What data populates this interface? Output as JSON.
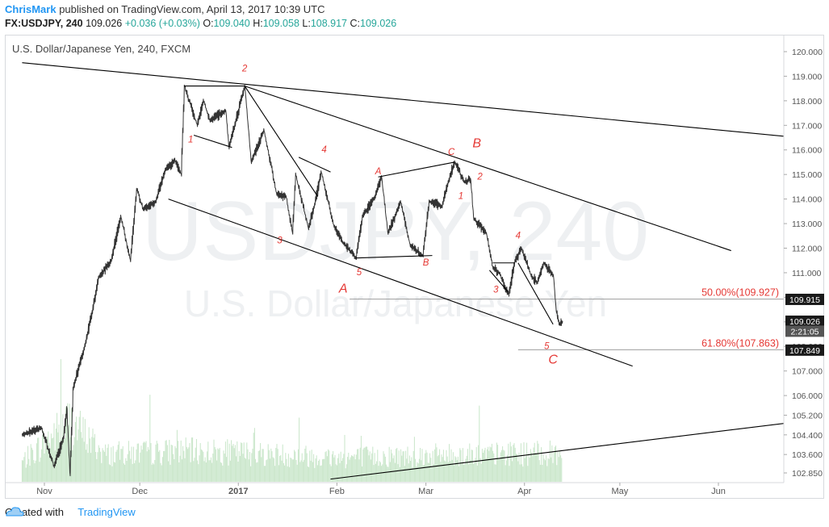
{
  "header": {
    "author": "ChrisMark",
    "published": "published on TradingView.com, April 13, 2017 10:39 UTC",
    "symbol": "FX:USDJPY, 240",
    "last": "109.026",
    "change": "+0.036 (+0.03%)",
    "open_label": "O:",
    "open": "109.040",
    "high_label": "H:",
    "high": "109.058",
    "low_label": "L:",
    "low": "108.917",
    "close_label": "C:",
    "close": "109.026"
  },
  "footer": {
    "created_with": "Created with",
    "brand": "TradingView"
  },
  "colors": {
    "wave_label": "#e53935",
    "trend_line": "#000000",
    "price_line": "#333333",
    "volume": "#c8e6c9",
    "fib_line": "#9e9e9e",
    "fib_label": "#e53935",
    "author": "#2196f3",
    "price_up": "#26a69a",
    "tag_dark": "#1a1a1a",
    "tag_mid": "#555555"
  },
  "chart_data": {
    "type": "line",
    "title": "U.S. Dollar/Japanese Yen, 240, FXCM",
    "watermark_line1": "USDJPY, 240",
    "watermark_line2": "U.S. Dollar/Japanese Yen",
    "x_ticks": [
      "Nov",
      "Dec",
      "2017",
      "Feb",
      "Mar",
      "Apr",
      "May",
      "Jun"
    ],
    "y_ticks": [
      "120.000",
      "119.000",
      "118.000",
      "117.000",
      "116.000",
      "115.000",
      "114.000",
      "113.000",
      "112.000",
      "111.000",
      "110.000",
      "109.000",
      "108.000",
      "107.000",
      "106.000",
      "105.200",
      "104.400",
      "103.600",
      "102.850"
    ],
    "ylim": [
      102.6,
      120.3
    ],
    "price_keypoints": [
      [
        "2016-10-25",
        104.4
      ],
      [
        "2016-10-31",
        104.7
      ],
      [
        "2016-11-04",
        103.1
      ],
      [
        "2016-11-07",
        104.3
      ],
      [
        "2016-11-08",
        105.5
      ],
      [
        "2016-11-09",
        102.8
      ],
      [
        "2016-11-10",
        106.3
      ],
      [
        "2016-11-14",
        108.2
      ],
      [
        "2016-11-16",
        109.4
      ],
      [
        "2016-11-18",
        110.8
      ],
      [
        "2016-11-22",
        111.5
      ],
      [
        "2016-11-25",
        113.3
      ],
      [
        "2016-11-28",
        111.5
      ],
      [
        "2016-11-30",
        114.4
      ],
      [
        "2016-12-02",
        113.6
      ],
      [
        "2016-12-06",
        113.9
      ],
      [
        "2016-12-09",
        115.2
      ],
      [
        "2016-12-12",
        115.6
      ],
      [
        "2016-12-14",
        115.0
      ],
      [
        "2016-12-15",
        118.6
      ],
      [
        "2016-12-19",
        117.0
      ],
      [
        "2016-12-21",
        118.0
      ],
      [
        "2016-12-23",
        117.2
      ],
      [
        "2016-12-28",
        117.6
      ],
      [
        "2016-12-29",
        116.1
      ],
      [
        "2017-01-03",
        118.6
      ],
      [
        "2017-01-05",
        115.5
      ],
      [
        "2017-01-09",
        116.8
      ],
      [
        "2017-01-13",
        114.2
      ],
      [
        "2017-01-16",
        114.1
      ],
      [
        "2017-01-18",
        112.6
      ],
      [
        "2017-01-19",
        115.0
      ],
      [
        "2017-01-23",
        112.8
      ],
      [
        "2017-01-25",
        113.8
      ],
      [
        "2017-01-27",
        115.1
      ],
      [
        "2017-01-31",
        112.9
      ],
      [
        "2017-02-03",
        112.2
      ],
      [
        "2017-02-07",
        111.6
      ],
      [
        "2017-02-09",
        113.3
      ],
      [
        "2017-02-13",
        114.1
      ],
      [
        "2017-02-15",
        114.9
      ],
      [
        "2017-02-17",
        112.6
      ],
      [
        "2017-02-21",
        113.9
      ],
      [
        "2017-02-24",
        112.1
      ],
      [
        "2017-02-28",
        111.7
      ],
      [
        "2017-03-02",
        113.9
      ],
      [
        "2017-03-06",
        113.7
      ],
      [
        "2017-03-08",
        114.7
      ],
      [
        "2017-03-10",
        115.5
      ],
      [
        "2017-03-13",
        114.7
      ],
      [
        "2017-03-15",
        114.8
      ],
      [
        "2017-03-16",
        113.2
      ],
      [
        "2017-03-20",
        112.6
      ],
      [
        "2017-03-22",
        111.2
      ],
      [
        "2017-03-24",
        111.0
      ],
      [
        "2017-03-27",
        110.1
      ],
      [
        "2017-03-29",
        111.5
      ],
      [
        "2017-03-31",
        112.0
      ],
      [
        "2017-04-03",
        110.9
      ],
      [
        "2017-04-05",
        110.6
      ],
      [
        "2017-04-07",
        111.4
      ],
      [
        "2017-04-10",
        110.9
      ],
      [
        "2017-04-11",
        109.4
      ],
      [
        "2017-04-12",
        108.9
      ],
      [
        "2017-04-13",
        109.026
      ]
    ],
    "volume_keypoints": [
      [
        "2016-10-25",
        0.18
      ],
      [
        "2016-11-09",
        0.55
      ],
      [
        "2016-11-20",
        0.25
      ],
      [
        "2016-12-15",
        0.28
      ],
      [
        "2017-01-05",
        0.26
      ],
      [
        "2017-02-01",
        0.22
      ],
      [
        "2017-03-01",
        0.24
      ],
      [
        "2017-04-13",
        0.26
      ]
    ],
    "trend_lines": [
      {
        "from": [
          "2016-10-25",
          119.55
        ],
        "to": [
          "2017-06-30",
          116.45
        ]
      },
      {
        "from": [
          "2017-01-03",
          118.6
        ],
        "to": [
          "2017-06-05",
          111.9
        ]
      },
      {
        "from": [
          "2016-12-10",
          114.0
        ],
        "to": [
          "2017-05-05",
          107.2
        ]
      },
      {
        "from": [
          "2017-01-30",
          102.6
        ],
        "to": [
          "2017-06-30",
          105.0
        ]
      },
      {
        "from": [
          "2016-12-15",
          118.6
        ],
        "to": [
          "2017-01-03",
          118.6
        ]
      },
      {
        "from": [
          "2017-01-03",
          118.6
        ],
        "to": [
          "2017-01-26",
          114.1
        ]
      },
      {
        "from": [
          "2017-02-14",
          114.9
        ],
        "to": [
          "2017-03-10",
          115.5
        ]
      },
      {
        "from": [
          "2017-02-07",
          111.6
        ],
        "to": [
          "2017-03-03",
          111.7
        ]
      },
      {
        "from": [
          "2016-12-18",
          116.6
        ],
        "to": [
          "2016-12-30",
          116.1
        ]
      },
      {
        "from": [
          "2017-01-20",
          115.7
        ],
        "to": [
          "2017-01-30",
          115.1
        ]
      },
      {
        "from": [
          "2017-03-21",
          111.1
        ],
        "to": [
          "2017-03-27",
          110.2
        ]
      },
      {
        "from": [
          "2017-03-22",
          111.4
        ],
        "to": [
          "2017-03-29",
          111.4
        ]
      },
      {
        "from": [
          "2017-03-30",
          111.4
        ],
        "to": [
          "2017-04-10",
          108.9
        ]
      }
    ],
    "wave_labels": [
      {
        "text": "2",
        "x": "2017-01-03",
        "y": 119.2
      },
      {
        "text": "1",
        "x": "2016-12-17",
        "y": 116.3
      },
      {
        "text": "4",
        "x": "2017-01-28",
        "y": 115.9
      },
      {
        "text": "3",
        "x": "2017-01-14",
        "y": 112.2
      },
      {
        "text": "5",
        "x": "2017-02-08",
        "y": 110.9
      },
      {
        "text": "A",
        "x": "2017-02-03",
        "y": 110.2,
        "big": true
      },
      {
        "text": "A",
        "x": "2017-02-14",
        "y": 115.0
      },
      {
        "text": "B",
        "x": "2017-03-01",
        "y": 111.3
      },
      {
        "text": "C",
        "x": "2017-03-09",
        "y": 115.8
      },
      {
        "text": "B",
        "x": "2017-03-17",
        "y": 116.1,
        "big": true
      },
      {
        "text": "1",
        "x": "2017-03-12",
        "y": 114.0
      },
      {
        "text": "2",
        "x": "2017-03-18",
        "y": 114.8
      },
      {
        "text": "3",
        "x": "2017-03-23",
        "y": 110.2
      },
      {
        "text": "4",
        "x": "2017-03-30",
        "y": 112.4
      },
      {
        "text": "5",
        "x": "2017-04-08",
        "y": 107.9
      },
      {
        "text": "C",
        "x": "2017-04-10",
        "y": 107.3,
        "big": true
      }
    ],
    "fib_levels": [
      {
        "label": "50.00%(109.927)",
        "price": 109.927,
        "from": "2017-02-05"
      },
      {
        "label": "61.80%(107.863)",
        "price": 107.863,
        "from": "2017-03-30"
      }
    ],
    "price_tags": [
      {
        "text": "109.915",
        "price": 109.915,
        "style": "dark"
      },
      {
        "text": "109.026",
        "price": 109.026,
        "style": "dark"
      },
      {
        "text": "2:21:05",
        "price": 108.62,
        "style": "mid"
      },
      {
        "text": "107.849",
        "price": 107.849,
        "style": "dark"
      }
    ]
  }
}
